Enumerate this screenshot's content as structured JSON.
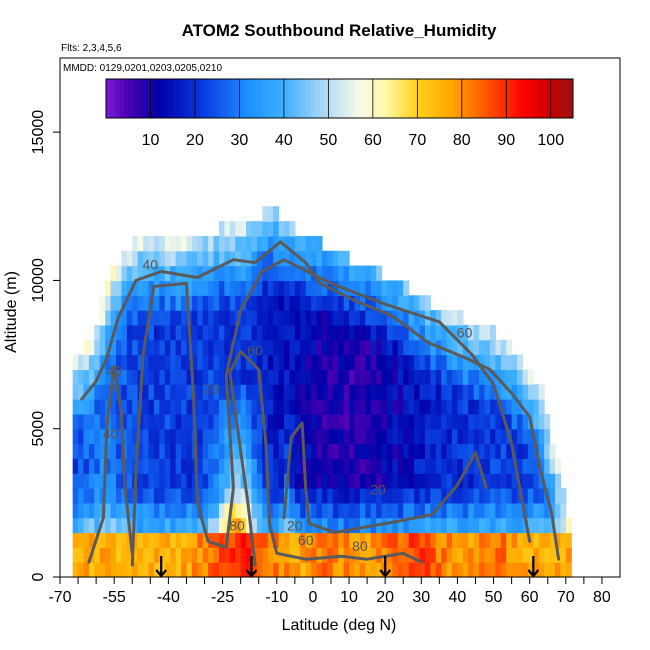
{
  "chart_data": {
    "type": "heatmap",
    "title": "ATOM2 Southbound Relative_Humidity",
    "flights_note": "Flts: 2,3,4,5,6",
    "dates_note": "MMDD: 0129,0201,0203,0205,0210",
    "xlabel": "Latitude (deg N)",
    "ylabel": "Altitude (m)",
    "xlim": [
      -70,
      85
    ],
    "ylim": [
      0,
      17500
    ],
    "x_ticks": [
      -70,
      -55,
      -40,
      -25,
      -10,
      0,
      10,
      20,
      30,
      40,
      50,
      60,
      70,
      80
    ],
    "x_minor_ticks": [
      -65,
      -60,
      -50,
      -45,
      -35,
      -30,
      -20,
      -15,
      -5,
      5,
      15,
      25,
      35,
      45,
      55,
      65,
      75
    ],
    "y_ticks": [
      0,
      5000,
      10000,
      15000
    ],
    "colorbar": {
      "min": 0,
      "max": 105,
      "ticks": [
        10,
        20,
        30,
        40,
        50,
        60,
        70,
        80,
        90,
        100
      ],
      "stops": [
        {
          "v": 0,
          "c": "#7a1cdb"
        },
        {
          "v": 5,
          "c": "#4b00b0"
        },
        {
          "v": 12,
          "c": "#0000a8"
        },
        {
          "v": 22,
          "c": "#0a3ce0"
        },
        {
          "v": 32,
          "c": "#1e90ff"
        },
        {
          "v": 40,
          "c": "#3cb0ff"
        },
        {
          "v": 50,
          "c": "#b8dcf5"
        },
        {
          "v": 57,
          "c": "#f6fbe8"
        },
        {
          "v": 63,
          "c": "#fff7a8"
        },
        {
          "v": 70,
          "c": "#ffd21a"
        },
        {
          "v": 78,
          "c": "#ffa500"
        },
        {
          "v": 87,
          "c": "#ff4500"
        },
        {
          "v": 94,
          "c": "#ff0000"
        },
        {
          "v": 100,
          "c": "#c80000"
        },
        {
          "v": 105,
          "c": "#9a1414"
        }
      ]
    },
    "contour_labels": [
      {
        "text": "40",
        "lat": -45,
        "alt": 10500
      },
      {
        "text": "60",
        "lat": -16,
        "alt": 7600
      },
      {
        "text": "60",
        "lat": 42,
        "alt": 8200
      },
      {
        "text": "20",
        "lat": -5,
        "alt": 1700
      },
      {
        "text": "20",
        "lat": 18,
        "alt": 2900
      },
      {
        "text": "80",
        "lat": -21,
        "alt": 1700
      },
      {
        "text": "60",
        "lat": -2,
        "alt": 1200
      },
      {
        "text": "80",
        "lat": 13,
        "alt": 1000
      },
      {
        "text": "40",
        "lat": -56,
        "alt": 4800
      },
      {
        "text": "20",
        "lat": -28,
        "alt": 6300
      },
      {
        "text": "40",
        "lat": -55,
        "alt": 6900
      }
    ],
    "profile_markers_lat": [
      -42,
      -17,
      20,
      61
    ],
    "data_envelope": [
      {
        "lat": -67,
        "top": 6900
      },
      {
        "lat": -63,
        "top": 7500
      },
      {
        "lat": -60,
        "top": 8300
      },
      {
        "lat": -57,
        "top": 9600
      },
      {
        "lat": -52,
        "top": 10900
      },
      {
        "lat": -45,
        "top": 11200
      },
      {
        "lat": -35,
        "top": 11000
      },
      {
        "lat": -25,
        "top": 11600
      },
      {
        "lat": -19,
        "top": 11500
      },
      {
        "lat": -12,
        "top": 12200
      },
      {
        "lat": -5,
        "top": 11500
      },
      {
        "lat": 5,
        "top": 10800
      },
      {
        "lat": 15,
        "top": 10200
      },
      {
        "lat": 25,
        "top": 9700
      },
      {
        "lat": 35,
        "top": 8800
      },
      {
        "lat": 45,
        "top": 8300
      },
      {
        "lat": 52,
        "top": 7900
      },
      {
        "lat": 58,
        "top": 7100
      },
      {
        "lat": 63,
        "top": 6300
      },
      {
        "lat": 66,
        "top": 4500
      },
      {
        "lat": 69,
        "top": 3100
      },
      {
        "lat": 71,
        "top": 1500
      }
    ]
  }
}
